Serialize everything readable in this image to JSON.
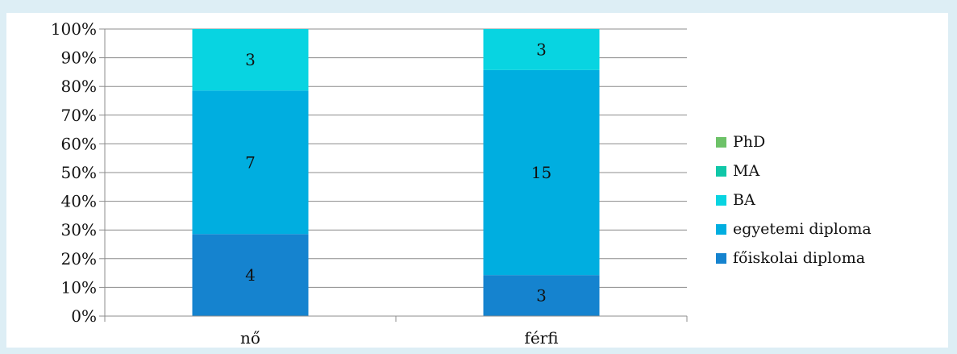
{
  "chart_data": {
    "type": "bar",
    "stacked": true,
    "percent": true,
    "categories": [
      "nő",
      "férfi"
    ],
    "series": [
      {
        "name": "főiskolai diploma",
        "values": [
          4,
          3
        ],
        "color": "#1583cf"
      },
      {
        "name": "egyetemi diploma",
        "values": [
          7,
          15
        ],
        "color": "#00aee0"
      },
      {
        "name": "BA",
        "values": [
          3,
          3
        ],
        "color": "#08d4e1"
      },
      {
        "name": "MA",
        "values": [
          0,
          0
        ],
        "color": "#10c7a8"
      },
      {
        "name": "PhD",
        "values": [
          0,
          0
        ],
        "color": "#6dc268"
      }
    ],
    "y_ticks": [
      "0%",
      "10%",
      "20%",
      "30%",
      "40%",
      "50%",
      "60%",
      "70%",
      "80%",
      "90%",
      "100%"
    ],
    "ylim": [
      0,
      100
    ],
    "grid": true,
    "legend_position": "right",
    "title": "",
    "xlabel": "",
    "ylabel": ""
  },
  "legend_order": [
    "PhD",
    "MA",
    "BA",
    "egyetemi diploma",
    "főiskolai diploma"
  ]
}
